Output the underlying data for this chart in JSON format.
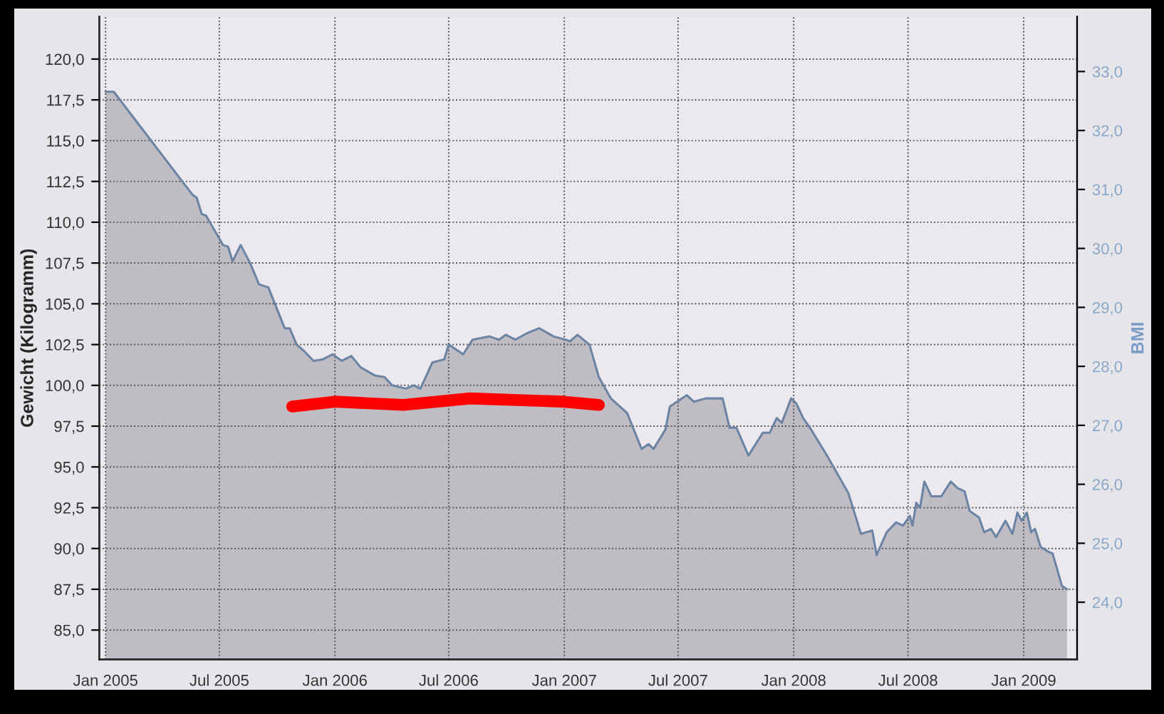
{
  "chart_data": {
    "type": "area",
    "xlabel": null,
    "ylabel": "Gewicht (Kilogramm)",
    "y2label": "BMI",
    "series": [
      {
        "color": "#c0bcc4",
        "x": [
          "2005-01-01",
          "2005-01-14",
          "2005-05-19",
          "2005-05-26",
          "2005-06-03",
          "2005-06-10",
          "2005-07-07",
          "2005-07-15",
          "2005-07-22",
          "2005-08-04",
          "2005-08-19",
          "2005-09-02",
          "2005-09-17",
          "2005-10-13",
          "2005-10-21",
          "2005-11-01",
          "2005-11-13",
          "2005-11-28",
          "2005-12-13",
          "2005-12-28",
          "2006-01-12",
          "2006-01-27",
          "2006-02-11",
          "2006-03-06",
          "2006-03-21",
          "2006-04-02",
          "2006-04-24",
          "2006-05-06",
          "2006-05-17",
          "2006-06-05",
          "2006-06-24",
          "2006-07-01",
          "2006-07-24",
          "2006-08-08",
          "2006-09-04",
          "2006-09-19",
          "2006-09-30",
          "2006-10-15",
          "2006-11-03",
          "2006-11-22",
          "2006-12-15",
          "2007-01-03",
          "2007-01-10",
          "2007-01-22",
          "2007-02-10",
          "2007-02-25",
          "2007-03-16",
          "2007-04-11",
          "2007-05-04",
          "2007-05-15",
          "2007-05-23",
          "2007-06-11",
          "2007-06-18",
          "2007-07-15",
          "2007-07-26",
          "2007-08-14",
          "2007-09-10",
          "2007-09-21",
          "2007-10-02",
          "2007-10-21",
          "2007-11-13",
          "2007-11-24",
          "2007-12-05",
          "2007-12-13",
          "2007-12-28",
          "2008-01-05",
          "2008-01-16",
          "2008-01-27",
          "2008-02-23",
          "2008-03-28",
          "2008-04-17",
          "2008-05-05",
          "2008-05-12",
          "2008-05-28",
          "2008-06-12",
          "2008-06-23",
          "2008-07-04",
          "2008-07-08",
          "2008-07-14",
          "2008-07-20",
          "2008-07-27",
          "2008-08-07",
          "2008-08-23",
          "2008-09-07",
          "2008-09-18",
          "2008-09-29",
          "2008-10-07",
          "2008-10-22",
          "2008-10-30",
          "2008-11-10",
          "2008-11-18",
          "2008-12-03",
          "2008-12-14",
          "2008-12-22",
          "2008-12-29",
          "2009-01-06",
          "2009-01-13",
          "2009-01-19",
          "2009-01-28",
          "2009-02-09",
          "2009-02-16",
          "2009-03-03",
          "2009-03-11"
        ],
        "values": [
          118.0,
          118.0,
          111.7,
          111.5,
          110.5,
          110.4,
          108.6,
          108.5,
          107.6,
          108.6,
          107.5,
          106.2,
          106.0,
          103.5,
          103.5,
          102.5,
          102.1,
          101.5,
          101.6,
          101.9,
          101.5,
          101.8,
          101.1,
          100.6,
          100.5,
          100.0,
          99.8,
          100.0,
          99.8,
          101.4,
          101.6,
          102.5,
          101.9,
          102.8,
          103.0,
          102.8,
          103.1,
          102.8,
          103.2,
          103.5,
          103.0,
          102.8,
          102.7,
          103.1,
          102.5,
          100.5,
          99.2,
          98.3,
          96.1,
          96.4,
          96.1,
          97.3,
          98.7,
          99.4,
          99.0,
          99.2,
          99.2,
          97.4,
          97.4,
          95.7,
          97.1,
          97.1,
          98.0,
          97.7,
          99.2,
          98.9,
          98.0,
          97.4,
          95.7,
          93.4,
          90.9,
          91.1,
          89.6,
          91.0,
          91.6,
          91.4,
          92.0,
          91.4,
          92.8,
          92.5,
          94.1,
          93.2,
          93.2,
          94.1,
          93.7,
          93.5,
          92.3,
          91.9,
          91.0,
          91.2,
          90.7,
          91.7,
          90.9,
          92.2,
          91.7,
          92.2,
          91.0,
          91.2,
          90.1,
          89.8,
          89.7,
          87.7,
          87.5
        ]
      },
      {
        "type": "line",
        "color": "#ff0000",
        "x": [
          "2005-10-25",
          "2006-01-01",
          "2006-04-20",
          "2006-08-04",
          "2006-12-30",
          "2007-02-25"
        ],
        "values": [
          98.7,
          99.0,
          98.8,
          99.2,
          99.0,
          98.8
        ]
      }
    ],
    "xlim": [
      "2004-12-22",
      "2009-03-27"
    ],
    "xticks": [
      {
        "value": "2005-01-01",
        "label": "Jan 2005"
      },
      {
        "value": "2005-07-01",
        "label": "Jul 2005"
      },
      {
        "value": "2006-01-01",
        "label": "Jan 2006"
      },
      {
        "value": "2006-07-01",
        "label": "Jul 2006"
      },
      {
        "value": "2007-01-01",
        "label": "Jan 2007"
      },
      {
        "value": "2007-07-01",
        "label": "Jul 2007"
      },
      {
        "value": "2008-01-01",
        "label": "Jan 2008"
      },
      {
        "value": "2008-07-01",
        "label": "Jul 2008"
      },
      {
        "value": "2009-01-01",
        "label": "Jan 2009"
      }
    ],
    "ylim": [
      83.2,
      122.6
    ],
    "yticks": [
      {
        "value": 85,
        "label": "85,0"
      },
      {
        "value": 87.5,
        "label": "87,5"
      },
      {
        "value": 90,
        "label": "90,0"
      },
      {
        "value": 92.5,
        "label": "92,5"
      },
      {
        "value": 95,
        "label": "95,0"
      },
      {
        "value": 97.5,
        "label": "97,5"
      },
      {
        "value": 100,
        "label": "100,0"
      },
      {
        "value": 102.5,
        "label": "102,5"
      },
      {
        "value": 105,
        "label": "105,0"
      },
      {
        "value": 107.5,
        "label": "107,5"
      },
      {
        "value": 110,
        "label": "110,0"
      },
      {
        "value": 112.5,
        "label": "112,5"
      },
      {
        "value": 115,
        "label": "115,0"
      },
      {
        "value": 117.5,
        "label": "117,5"
      },
      {
        "value": 120,
        "label": "120,0"
      }
    ],
    "y2lim": [
      23.03,
      33.93
    ],
    "y2ticks": [
      {
        "value": 24,
        "label": "24,0"
      },
      {
        "value": 25,
        "label": "25,0"
      },
      {
        "value": 26,
        "label": "26,0"
      },
      {
        "value": 27,
        "label": "27,0"
      },
      {
        "value": 28,
        "label": "28,0"
      },
      {
        "value": 29,
        "label": "29,0"
      },
      {
        "value": 30,
        "label": "30,0"
      },
      {
        "value": 31,
        "label": "31,0"
      },
      {
        "value": 32,
        "label": "32,0"
      },
      {
        "value": 33,
        "label": "33,0"
      }
    ],
    "grid": true,
    "legend": false
  }
}
